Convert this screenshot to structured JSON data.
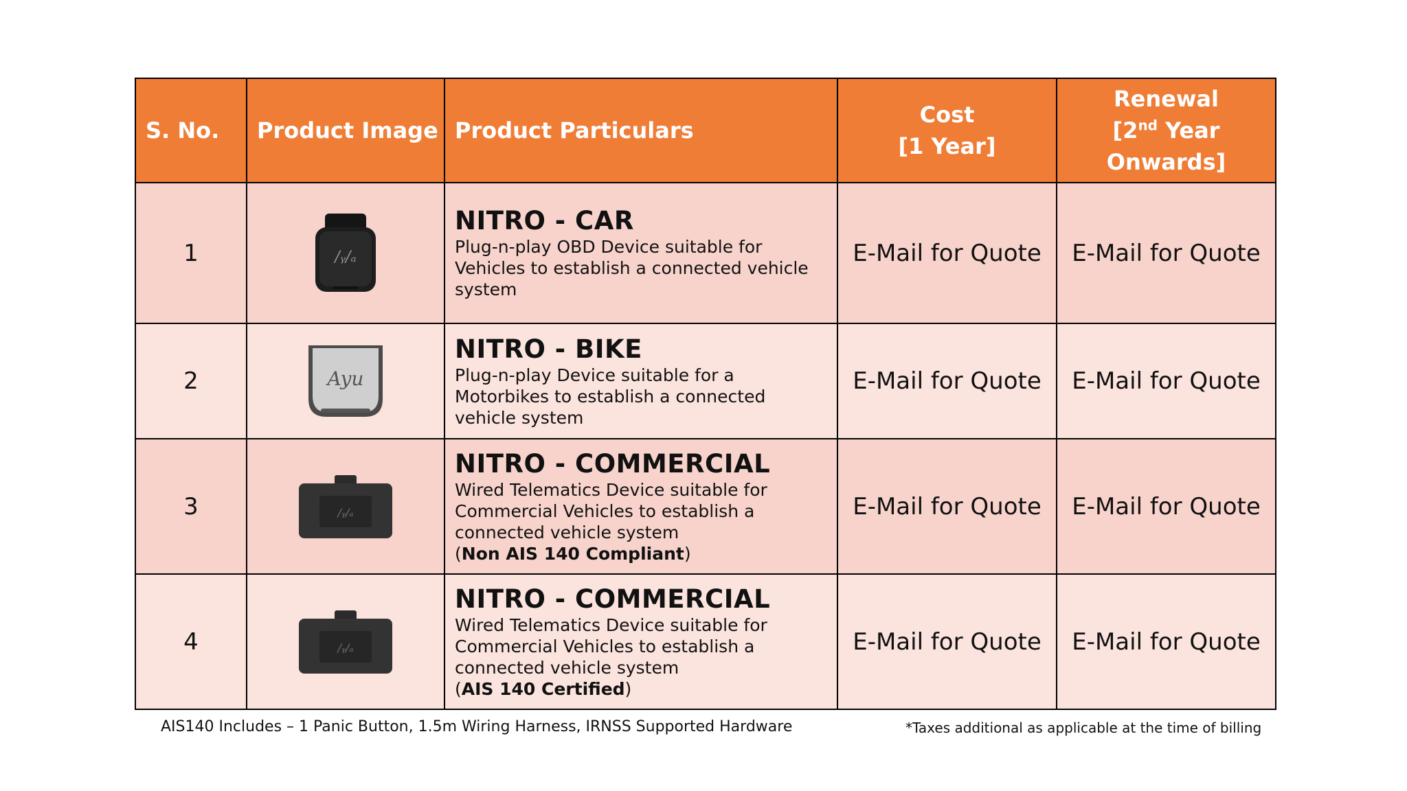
{
  "table": {
    "headers": {
      "sno": "S. No.",
      "image": "Product Image",
      "particulars": "Product Particulars",
      "cost_line1": "Cost",
      "cost_line2": "[1 Year]",
      "renewal_line1": "Renewal",
      "renewal_pre": "[2",
      "renewal_sup": "nd",
      "renewal_post": " Year",
      "renewal_line3": "Onwards]"
    },
    "rows": [
      {
        "sno": "1",
        "image_icon": "obd-device-icon",
        "name": "NITRO - CAR",
        "description": "Plug-n-play OBD Device suitable for Vehicles to establish a connected vehicle system",
        "cost": "E-Mail for Quote",
        "renewal": "E-Mail for Quote"
      },
      {
        "sno": "2",
        "image_icon": "bike-device-icon",
        "name": "NITRO - BIKE",
        "description": "Plug-n-play Device suitable for a Motorbikes to establish a connected vehicle system",
        "cost": "E-Mail for Quote",
        "renewal": "E-Mail for Quote"
      },
      {
        "sno": "3",
        "image_icon": "telematics-device-icon",
        "name": "NITRO - COMMERCIAL",
        "description": "Wired Telematics Device suitable for Commercial Vehicles to establish a connected vehicle system",
        "compliance_open": "(",
        "compliance": "Non AIS 140 Compliant",
        "compliance_close": ")",
        "cost": "E-Mail for Quote",
        "renewal": "E-Mail for Quote"
      },
      {
        "sno": "4",
        "image_icon": "telematics-device-icon",
        "name": "NITRO - COMMERCIAL",
        "description": "Wired Telematics Device suitable for Commercial Vehicles to establish a connected vehicle system",
        "compliance_open": "(",
        "compliance": "AIS 140 Certified",
        "compliance_close": ")",
        "cost": "E-Mail for Quote",
        "renewal": "E-Mail for Quote"
      }
    ]
  },
  "footer": {
    "left_note": "AIS140 Includes – 1 Panic Button, 1.5m Wiring Harness, IRNSS Supported Hardware",
    "right_note": "*Taxes additional as applicable at the time of billing"
  },
  "colors": {
    "header_bg": "#ef7d35",
    "row_dark": "#f7d3cc",
    "row_light": "#fbe3de"
  }
}
